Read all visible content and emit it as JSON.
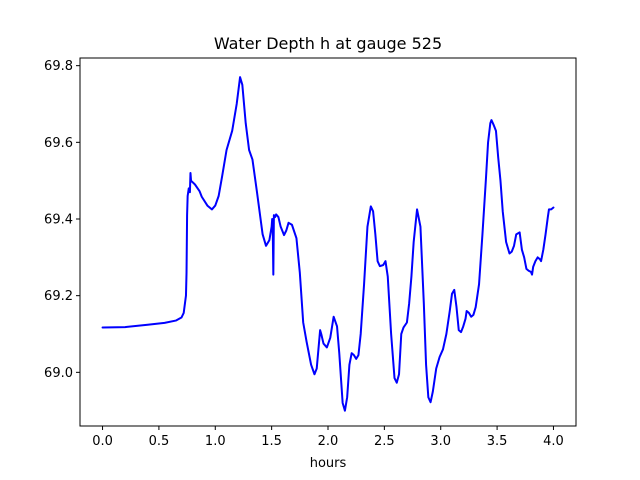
{
  "chart_data": {
    "type": "line",
    "title": "Water Depth h at gauge 525",
    "xlabel": "hours",
    "ylabel": "",
    "xlim": [
      -0.2,
      4.2
    ],
    "ylim": [
      68.86,
      69.82
    ],
    "x_ticks": [
      0.0,
      0.5,
      1.0,
      1.5,
      2.0,
      2.5,
      3.0,
      3.5,
      4.0
    ],
    "x_tick_labels": [
      "0.0",
      "0.5",
      "1.0",
      "1.5",
      "2.0",
      "2.5",
      "3.0",
      "3.5",
      "4.0"
    ],
    "y_ticks": [
      69.0,
      69.2,
      69.4,
      69.6,
      69.8
    ],
    "y_tick_labels": [
      "69.0",
      "69.2",
      "69.4",
      "69.6",
      "69.8"
    ],
    "grid": false,
    "legend": "none",
    "series": [
      {
        "color": "#0000ff",
        "points": [
          [
            0.0,
            69.117
          ],
          [
            0.2,
            69.118
          ],
          [
            0.4,
            69.124
          ],
          [
            0.55,
            69.129
          ],
          [
            0.65,
            69.135
          ],
          [
            0.7,
            69.143
          ],
          [
            0.72,
            69.155
          ],
          [
            0.74,
            69.2
          ],
          [
            0.745,
            69.26
          ],
          [
            0.75,
            69.41
          ],
          [
            0.755,
            69.46
          ],
          [
            0.765,
            69.48
          ],
          [
            0.775,
            69.47
          ],
          [
            0.78,
            69.52
          ],
          [
            0.785,
            69.5
          ],
          [
            0.82,
            69.49
          ],
          [
            0.86,
            69.473
          ],
          [
            0.88,
            69.458
          ],
          [
            0.93,
            69.435
          ],
          [
            0.97,
            69.425
          ],
          [
            1.0,
            69.435
          ],
          [
            1.03,
            69.46
          ],
          [
            1.06,
            69.51
          ],
          [
            1.1,
            69.58
          ],
          [
            1.15,
            69.63
          ],
          [
            1.19,
            69.7
          ],
          [
            1.22,
            69.77
          ],
          [
            1.24,
            69.75
          ],
          [
            1.27,
            69.65
          ],
          [
            1.3,
            69.58
          ],
          [
            1.33,
            69.555
          ],
          [
            1.37,
            69.47
          ],
          [
            1.42,
            69.36
          ],
          [
            1.45,
            69.33
          ],
          [
            1.48,
            69.345
          ],
          [
            1.5,
            69.38
          ],
          [
            1.505,
            69.4
          ],
          [
            1.51,
            69.37
          ],
          [
            1.515,
            69.255
          ],
          [
            1.52,
            69.41
          ],
          [
            1.53,
            69.405
          ],
          [
            1.54,
            69.412
          ],
          [
            1.56,
            69.405
          ],
          [
            1.58,
            69.38
          ],
          [
            1.61,
            69.358
          ],
          [
            1.63,
            69.37
          ],
          [
            1.65,
            69.39
          ],
          [
            1.68,
            69.385
          ],
          [
            1.72,
            69.35
          ],
          [
            1.75,
            69.26
          ],
          [
            1.78,
            69.13
          ],
          [
            1.81,
            69.08
          ],
          [
            1.85,
            69.02
          ],
          [
            1.88,
            68.995
          ],
          [
            1.9,
            69.01
          ],
          [
            1.93,
            69.11
          ],
          [
            1.94,
            69.1
          ],
          [
            1.96,
            69.075
          ],
          [
            1.99,
            69.065
          ],
          [
            2.02,
            69.09
          ],
          [
            2.05,
            69.145
          ],
          [
            2.08,
            69.12
          ],
          [
            2.1,
            69.05
          ],
          [
            2.13,
            68.92
          ],
          [
            2.15,
            68.9
          ],
          [
            2.17,
            68.935
          ],
          [
            2.19,
            69.02
          ],
          [
            2.21,
            69.05
          ],
          [
            2.23,
            69.045
          ],
          [
            2.25,
            69.035
          ],
          [
            2.27,
            69.045
          ],
          [
            2.29,
            69.1
          ],
          [
            2.32,
            69.23
          ],
          [
            2.35,
            69.38
          ],
          [
            2.38,
            69.433
          ],
          [
            2.4,
            69.42
          ],
          [
            2.42,
            69.36
          ],
          [
            2.44,
            69.29
          ],
          [
            2.46,
            69.277
          ],
          [
            2.49,
            69.28
          ],
          [
            2.51,
            69.29
          ],
          [
            2.53,
            69.25
          ],
          [
            2.56,
            69.1
          ],
          [
            2.59,
            68.985
          ],
          [
            2.61,
            68.973
          ],
          [
            2.63,
            68.995
          ],
          [
            2.65,
            69.1
          ],
          [
            2.67,
            69.117
          ],
          [
            2.7,
            69.13
          ],
          [
            2.72,
            69.18
          ],
          [
            2.74,
            69.25
          ],
          [
            2.76,
            69.34
          ],
          [
            2.79,
            69.425
          ],
          [
            2.82,
            69.38
          ],
          [
            2.85,
            69.18
          ],
          [
            2.87,
            69.02
          ],
          [
            2.89,
            68.935
          ],
          [
            2.91,
            68.922
          ],
          [
            2.93,
            68.95
          ],
          [
            2.96,
            69.01
          ],
          [
            2.99,
            69.04
          ],
          [
            3.02,
            69.06
          ],
          [
            3.05,
            69.1
          ],
          [
            3.08,
            69.16
          ],
          [
            3.1,
            69.205
          ],
          [
            3.12,
            69.215
          ],
          [
            3.14,
            69.17
          ],
          [
            3.16,
            69.11
          ],
          [
            3.18,
            69.105
          ],
          [
            3.2,
            69.12
          ],
          [
            3.22,
            69.14
          ],
          [
            3.23,
            69.16
          ],
          [
            3.25,
            69.155
          ],
          [
            3.27,
            69.145
          ],
          [
            3.29,
            69.15
          ],
          [
            3.31,
            69.17
          ],
          [
            3.34,
            69.23
          ],
          [
            3.37,
            69.36
          ],
          [
            3.4,
            69.5
          ],
          [
            3.42,
            69.6
          ],
          [
            3.44,
            69.65
          ],
          [
            3.45,
            69.658
          ],
          [
            3.47,
            69.645
          ],
          [
            3.49,
            69.63
          ],
          [
            3.51,
            69.56
          ],
          [
            3.53,
            69.5
          ],
          [
            3.55,
            69.42
          ],
          [
            3.58,
            69.34
          ],
          [
            3.61,
            69.31
          ],
          [
            3.63,
            69.315
          ],
          [
            3.65,
            69.33
          ],
          [
            3.67,
            69.36
          ],
          [
            3.7,
            69.365
          ],
          [
            3.72,
            69.32
          ],
          [
            3.74,
            69.3
          ],
          [
            3.76,
            69.27
          ],
          [
            3.78,
            69.265
          ],
          [
            3.8,
            69.262
          ],
          [
            3.81,
            69.255
          ],
          [
            3.82,
            69.275
          ],
          [
            3.84,
            69.29
          ],
          [
            3.86,
            69.3
          ],
          [
            3.88,
            69.295
          ],
          [
            3.89,
            69.29
          ],
          [
            3.91,
            69.32
          ],
          [
            3.93,
            69.36
          ],
          [
            3.95,
            69.405
          ],
          [
            3.96,
            69.425
          ],
          [
            3.98,
            69.425
          ],
          [
            4.0,
            69.43
          ]
        ]
      }
    ]
  }
}
